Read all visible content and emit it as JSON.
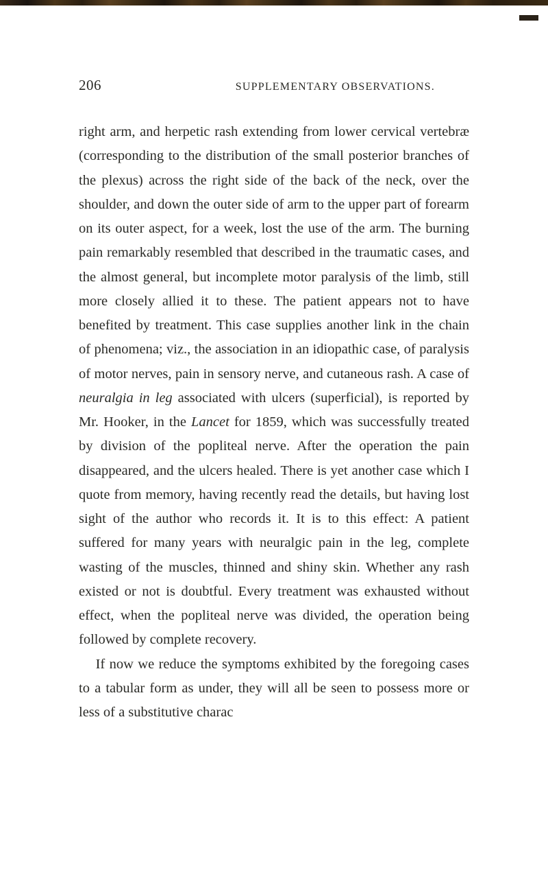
{
  "page_number": "206",
  "running_title": "SUPPLEMENTARY OBSERVATIONS.",
  "paragraphs": [
    "right arm, and herpetic rash extending from lower cer­vical vertebræ (corresponding to the distribution of the small posterior branches of the plexus) across the right side of the back of the neck, over the shoulder, and down the outer side of arm to the upper part of forearm on its outer aspect, for a week, lost the use of the arm. The burning pain remarkably resembled that described in the traumatic cases, and the almost general, but incomplete motor paralysis of the limb, still more closely allied it to these. The patient appears not to have benefited by treatment. This case supplies an­other link in the chain of phenomena; viz., the asso­ciation in an idiopathic case, of paralysis of motor nerves, pain in sensory nerve, and cutaneous rash. A case of <i>neuralgia in leg</i> associated with ulcers (superficial), is reported by Mr. Hooker, in the <i>Lancet</i> for 1859, which was successfully treated by division of the pop­liteal nerve. After the operation the pain disappeared, and the ulcers healed. There is yet another case which I quote from memory, having recently read the details, but having lost sight of the author who records it. It is to this effect: A patient suffered for many years with neuralgic pain in the leg, complete wasting of the muscles, thinned and shiny skin. Whether any rash existed or not is doubtful. Every treatment was ex­hausted without effect, when the popliteal nerve was divided, the operation being followed by complete re­covery.",
    "If now we reduce the symptoms exhibited by the foregoing cases to a tabular form as under, they will all be seen to possess more or less of a substitutive charac­"
  ]
}
